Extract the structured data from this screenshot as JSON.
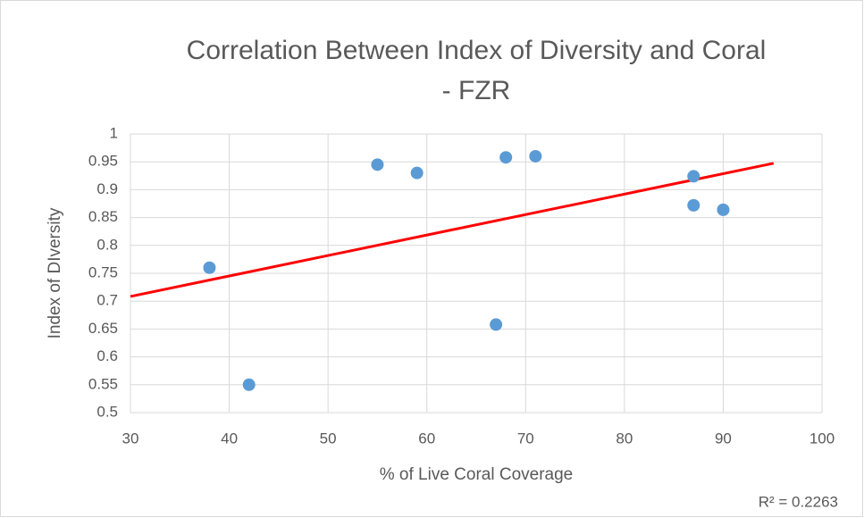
{
  "chart_data": {
    "type": "scatter",
    "title": [
      "Correlation Between Index of Diversity and Coral",
      "- FZR"
    ],
    "x_label": "% of Live Coral Coverage",
    "y_label": "Index of DIversity",
    "x": [
      38,
      42,
      55,
      59,
      67,
      68,
      71,
      87,
      87,
      90
    ],
    "series": [
      {
        "name": "Index of DIversity",
        "color": "#5b9bd5",
        "values": [
          0.76,
          0.55,
          0.945,
          0.93,
          0.658,
          0.958,
          0.96,
          0.924,
          0.872,
          0.864
        ]
      }
    ],
    "trendline": {
      "type": "linear",
      "color": "#ff0000",
      "label": "R² = 0.2263"
    },
    "xlim": [
      30,
      100
    ],
    "xticks": [
      30,
      40,
      50,
      60,
      70,
      80,
      90,
      100
    ],
    "ylim": [
      0.5,
      1
    ],
    "yticks": [
      0.5,
      0.55,
      0.6,
      0.65,
      0.7,
      0.75,
      0.8,
      0.85,
      0.9,
      0.95,
      1
    ],
    "grid": true
  }
}
